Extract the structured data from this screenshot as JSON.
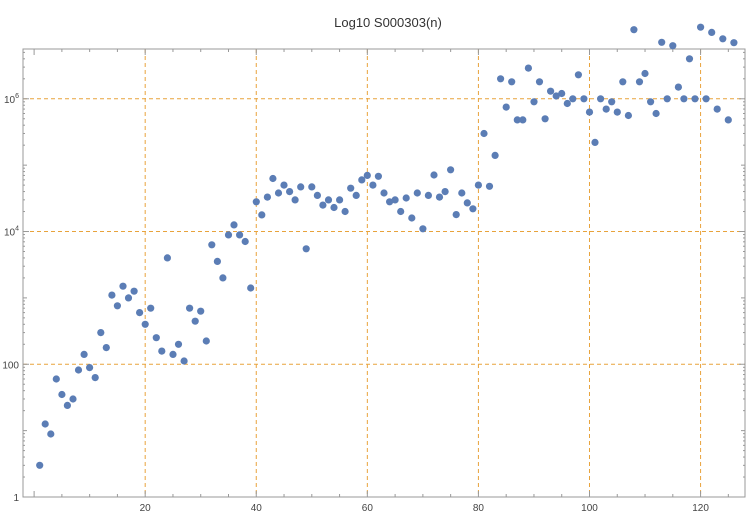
{
  "chart_data": {
    "type": "scatter",
    "title": "Log10 S000303(n)",
    "xlabel": "",
    "ylabel": "",
    "x_scale": "linear",
    "y_scale": "log10",
    "xlim": [
      -2,
      128
    ],
    "ylim_log10": [
      0,
      6.75
    ],
    "x_ticks": [
      20,
      40,
      60,
      80,
      100,
      120
    ],
    "x_tick_labels": [
      "20",
      "40",
      "60",
      "80",
      "100",
      "120"
    ],
    "y_ticks": [
      1,
      100,
      10000,
      1000000
    ],
    "y_tick_labels": [
      {
        "base": "1",
        "exp": ""
      },
      {
        "base": "100",
        "exp": ""
      },
      {
        "base": "10",
        "exp": "4"
      },
      {
        "base": "10",
        "exp": "6"
      }
    ],
    "grid": true,
    "legend": "none",
    "colors": {
      "points": "#5b7db5",
      "grid": "#e8a33c",
      "axes": "#999999"
    },
    "x": [
      1,
      2,
      3,
      4,
      5,
      6,
      7,
      8,
      9,
      10,
      11,
      12,
      13,
      14,
      15,
      16,
      17,
      18,
      19,
      20,
      21,
      22,
      23,
      24,
      25,
      26,
      27,
      28,
      29,
      30,
      31,
      32,
      33,
      34,
      35,
      36,
      37,
      38,
      39,
      40,
      41,
      42,
      43,
      44,
      45,
      46,
      47,
      48,
      49,
      50,
      51,
      52,
      53,
      54,
      55,
      56,
      57,
      58,
      59,
      60,
      61,
      62,
      63,
      64,
      65,
      66,
      67,
      68,
      69,
      70,
      71,
      72,
      73,
      74,
      75,
      76,
      77,
      78,
      79,
      80,
      81,
      82,
      83,
      84,
      85,
      86,
      87,
      88,
      89,
      90,
      91,
      92,
      93,
      94,
      95,
      96,
      97,
      98,
      99,
      100,
      101,
      102,
      103,
      104,
      105,
      106,
      107,
      108,
      109,
      110,
      111,
      112,
      113,
      114,
      115,
      116,
      117,
      118,
      119,
      120,
      121,
      122,
      123,
      124,
      125,
      126
    ],
    "y": [
      3,
      12.6,
      8.9,
      60,
      35,
      24,
      30,
      82,
      141,
      89,
      63,
      300,
      178,
      1100,
      760,
      1500,
      1000,
      1260,
      600,
      400,
      700,
      251,
      158,
      4000,
      141,
      200,
      112,
      700,
      446,
      630,
      224,
      6300,
      3550,
      2000,
      8900,
      12600,
      8900,
      7080,
      1410,
      28000,
      17800,
      33000,
      63000,
      38000,
      50000,
      40000,
      30000,
      47000,
      5500,
      47000,
      35000,
      25000,
      30000,
      23000,
      30000,
      20000,
      45000,
      35000,
      60000,
      70000,
      50000,
      68000,
      38000,
      28000,
      30000,
      20000,
      32000,
      16000,
      38000,
      11000,
      35000,
      71000,
      33000,
      40000,
      85000,
      18000,
      38000,
      27000,
      22000,
      50000,
      300000,
      48000,
      140000,
      2000000,
      750000,
      1800000,
      480000,
      480000,
      2900000,
      900000,
      1800000,
      500000,
      1300000,
      1100000,
      1200000,
      850000,
      1000000,
      2300000,
      1000000,
      630000,
      220000,
      1000000,
      700000,
      900000,
      630000,
      1800000,
      560000,
      11000000,
      1800000,
      2400000,
      900000,
      600000,
      7100000,
      1000000,
      6300000,
      1500000,
      1000000,
      4000000,
      1000000,
      12000000,
      1000000,
      10000000,
      700000,
      8000000,
      480000,
      7000000
    ]
  }
}
